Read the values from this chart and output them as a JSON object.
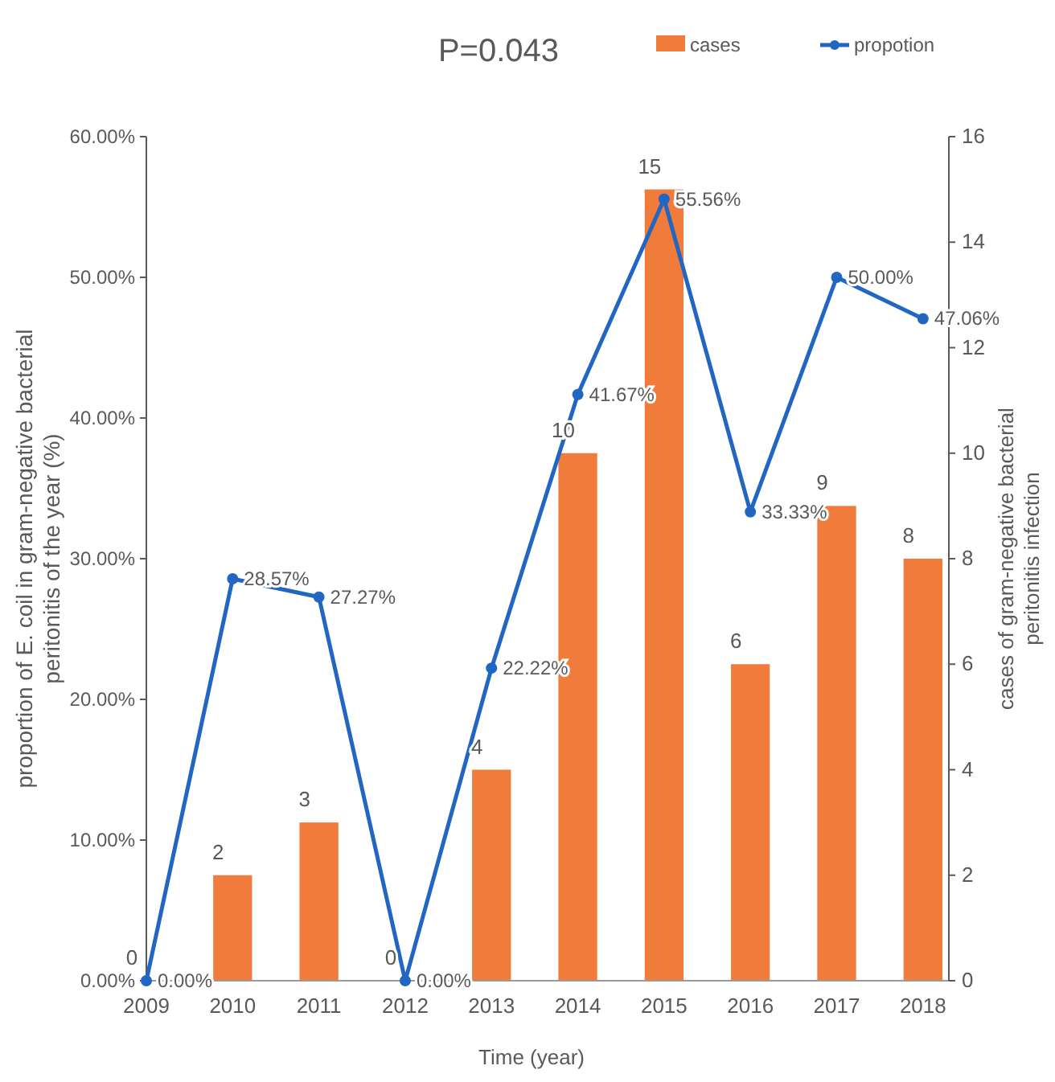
{
  "chart_data": {
    "type": "bar",
    "title": "P=0.043",
    "xlabel": "Time (year)",
    "ylabel": "proportion of E. coil  in gram-negative bacterial peritonitis of the year  (%)",
    "y2label": "cases of gram-negative bacterial peritonitis infection",
    "categories": [
      "2009",
      "2010",
      "2011",
      "2012",
      "2013",
      "2014",
      "2015",
      "2016",
      "2017",
      "2018"
    ],
    "series": [
      {
        "name": "cases",
        "axis": "y2",
        "color": "#f07b3a",
        "values": [
          0,
          2,
          3,
          0,
          4,
          10,
          15,
          6,
          9,
          8
        ],
        "value_labels": [
          "0",
          "2",
          "3",
          "0",
          "4",
          "10",
          "15",
          "6",
          "9",
          "8"
        ]
      },
      {
        "name": "propotion",
        "type": "line",
        "axis": "y",
        "color": "#2266c4",
        "values": [
          0,
          28.57,
          27.27,
          0,
          22.22,
          41.67,
          55.56,
          33.33,
          50.0,
          47.06
        ],
        "value_labels": [
          "0.00%",
          "28.57%",
          "27.27%",
          "0.00%",
          "22.22%",
          "41.67%",
          "55.56%",
          "33.33%",
          "50.00%",
          "47.06%"
        ]
      }
    ],
    "ylim": [
      0,
      60
    ],
    "yticks": [
      {
        "value": 0,
        "label": "0.00%"
      },
      {
        "value": 10,
        "label": "10.00%"
      },
      {
        "value": 20,
        "label": "20.00%"
      },
      {
        "value": 30,
        "label": "30.00%"
      },
      {
        "value": 40,
        "label": "40.00%"
      },
      {
        "value": 50,
        "label": "50.00%"
      },
      {
        "value": 60,
        "label": "60.00%"
      }
    ],
    "y2lim": [
      0,
      16
    ],
    "y2ticks": [
      0,
      2,
      4,
      6,
      8,
      10,
      12,
      14,
      16
    ],
    "legend": "top",
    "marker": "circle",
    "grid": false
  }
}
